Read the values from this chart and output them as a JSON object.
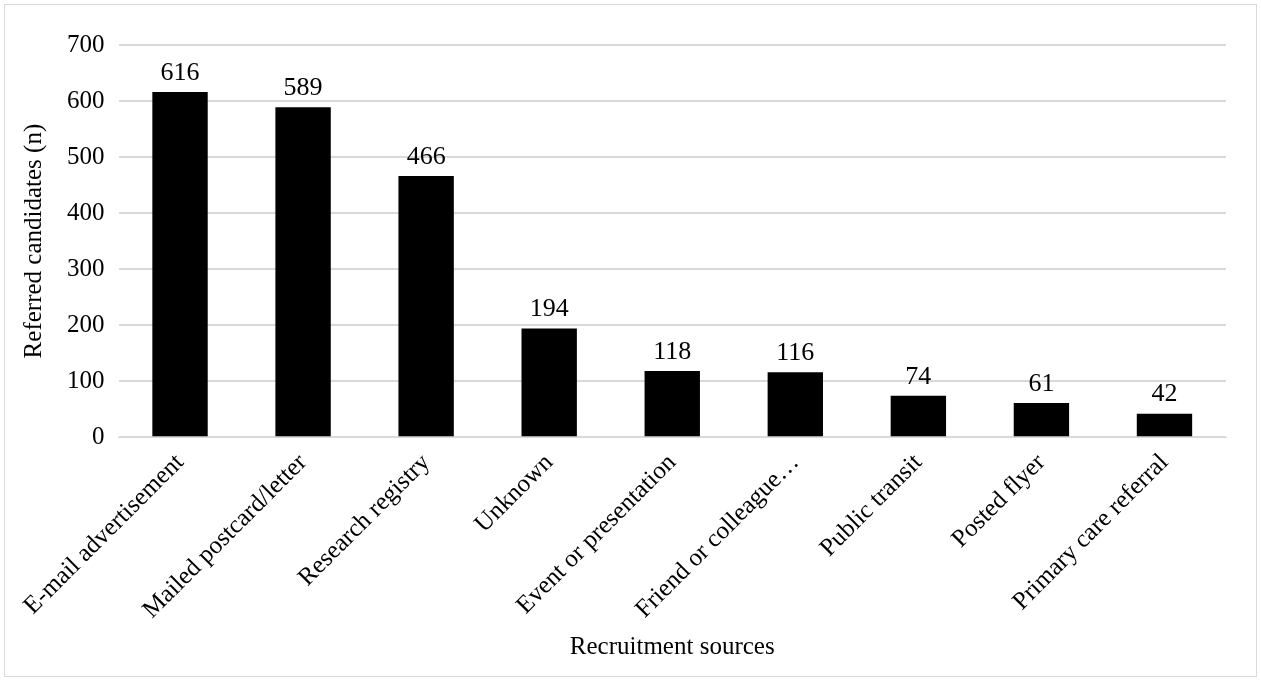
{
  "chart_data": {
    "type": "bar",
    "xlabel": "Recruitment sources",
    "ylabel": "Referred candidates (n)",
    "categories": [
      "E-mail advertisement",
      "Mailed postcard/letter",
      "Research registry",
      "Unknown",
      "Event or presentation",
      "Friend or colleague…",
      "Public transit",
      "Posted flyer",
      "Primary care referral"
    ],
    "values": [
      616,
      589,
      466,
      194,
      118,
      116,
      74,
      61,
      42
    ],
    "color": "#000000",
    "ylim": [
      0,
      700
    ],
    "yticks": [
      0,
      100,
      200,
      300,
      400,
      500,
      600,
      700
    ],
    "grid": "y",
    "data_labels": true
  }
}
